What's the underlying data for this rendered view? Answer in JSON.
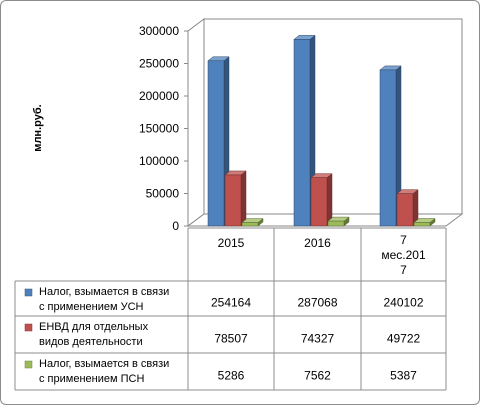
{
  "chart_data": {
    "type": "bar",
    "style": "3d-clustered-column-with-data-table",
    "ylabel": "млн.руб.",
    "ylim": [
      0,
      300000
    ],
    "yticks": [
      0,
      50000,
      100000,
      150000,
      200000,
      250000,
      300000
    ],
    "categories": [
      [
        "2015"
      ],
      [
        "2016"
      ],
      [
        "7",
        "мес.201",
        "7"
      ]
    ],
    "series": [
      {
        "name": [
          "Налог, взымается в связи",
          "с применением УСН"
        ],
        "color": "#4f81bd",
        "values": [
          254164,
          287068,
          240102
        ],
        "labels": [
          "254164",
          "287068",
          "240102"
        ]
      },
      {
        "name": [
          "ЕНВД для отдельных",
          "видов деятельности"
        ],
        "color": "#c0504d",
        "values": [
          78507,
          74327,
          49722
        ],
        "labels": [
          "78507",
          "74327",
          "49722"
        ]
      },
      {
        "name": [
          "Налог, взымается в связи",
          "с применением ПСН"
        ],
        "color": "#9bbb59",
        "values": [
          5286,
          7562,
          5387
        ],
        "labels": [
          "5286",
          "7562",
          "5387"
        ]
      }
    ],
    "grid": false,
    "legend": "data-table"
  }
}
